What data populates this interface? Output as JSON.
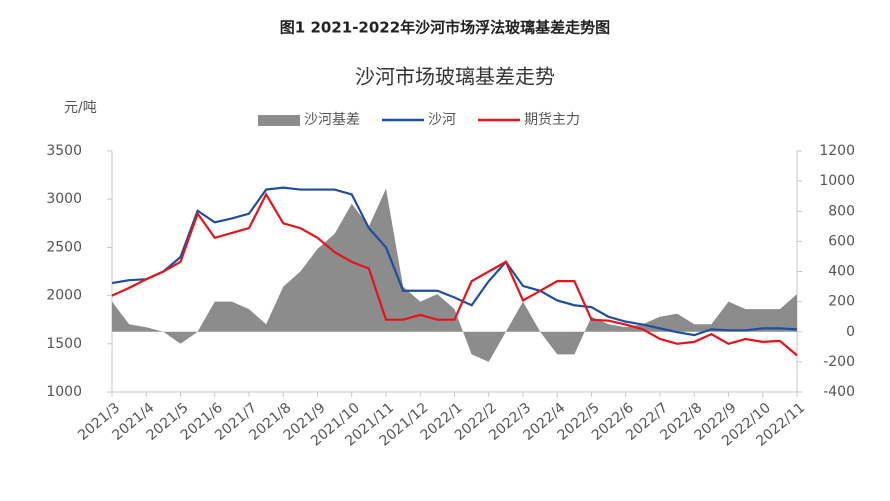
{
  "figure_title": "图1 2021-2022年沙河市场浮法玻璃基差走势图",
  "chart_data": {
    "type": "line",
    "title": "沙河市场玻璃基差走势",
    "y_label": "元/吨",
    "categories": [
      "2021/3",
      null,
      "2021/4",
      null,
      "2021/5",
      null,
      "2021/6",
      null,
      "2021/7",
      null,
      "2021/8",
      null,
      "2021/9",
      null,
      "2021/10",
      null,
      "2021/11",
      null,
      "2021/12",
      null,
      "2022/1",
      null,
      "2022/2",
      null,
      "2022/3",
      null,
      "2022/4",
      null,
      "2022/5",
      null,
      "2022/6",
      null,
      "2022/7",
      null,
      "2022/8",
      null,
      "2022/9",
      null,
      "2022/10",
      null,
      "2022/11"
    ],
    "series": [
      {
        "name": "沙河基差",
        "type": "area",
        "axis": "y2",
        "color": "#8c8c8c",
        "values": [
          200,
          50,
          30,
          0,
          -80,
          0,
          200,
          200,
          150,
          50,
          300,
          400,
          550,
          650,
          850,
          700,
          950,
          300,
          200,
          250,
          150,
          -150,
          -200,
          0,
          200,
          0,
          -150,
          -150,
          100,
          50,
          30,
          50,
          100,
          120,
          50,
          50,
          200,
          150,
          150,
          150,
          250
        ]
      },
      {
        "name": "沙河",
        "type": "line",
        "color": "#1f4e9c",
        "values": [
          2130,
          2160,
          2170,
          2250,
          2400,
          2880,
          2760,
          2800,
          2850,
          3100,
          3120,
          3100,
          3100,
          3100,
          3050,
          2700,
          2500,
          2050,
          2050,
          2050,
          1980,
          1900,
          2150,
          2350,
          2100,
          2050,
          1950,
          1900,
          1880,
          1780,
          1730,
          1700,
          1660,
          1620,
          1590,
          1650,
          1640,
          1640,
          1660,
          1660,
          1650
        ]
      },
      {
        "name": "期货主力",
        "type": "line",
        "color": "#e3141b",
        "values": [
          2000,
          2080,
          2170,
          2250,
          2350,
          2850,
          2600,
          2650,
          2700,
          3050,
          2750,
          2700,
          2600,
          2450,
          2350,
          2280,
          1750,
          1750,
          1800,
          1750,
          1750,
          2150,
          2250,
          2350,
          1950,
          2050,
          2150,
          2150,
          1750,
          1740,
          1700,
          1650,
          1550,
          1500,
          1520,
          1600,
          1500,
          1550,
          1520,
          1530,
          1380
        ]
      }
    ],
    "ylim": [
      1000,
      3500
    ],
    "yticks": [
      1000,
      1500,
      2000,
      2500,
      3000,
      3500
    ],
    "y2lim": [
      -400,
      1200
    ],
    "y2ticks": [
      -400,
      -200,
      0,
      200,
      400,
      600,
      800,
      1000,
      1200
    ],
    "grid": false,
    "legend": "top"
  }
}
